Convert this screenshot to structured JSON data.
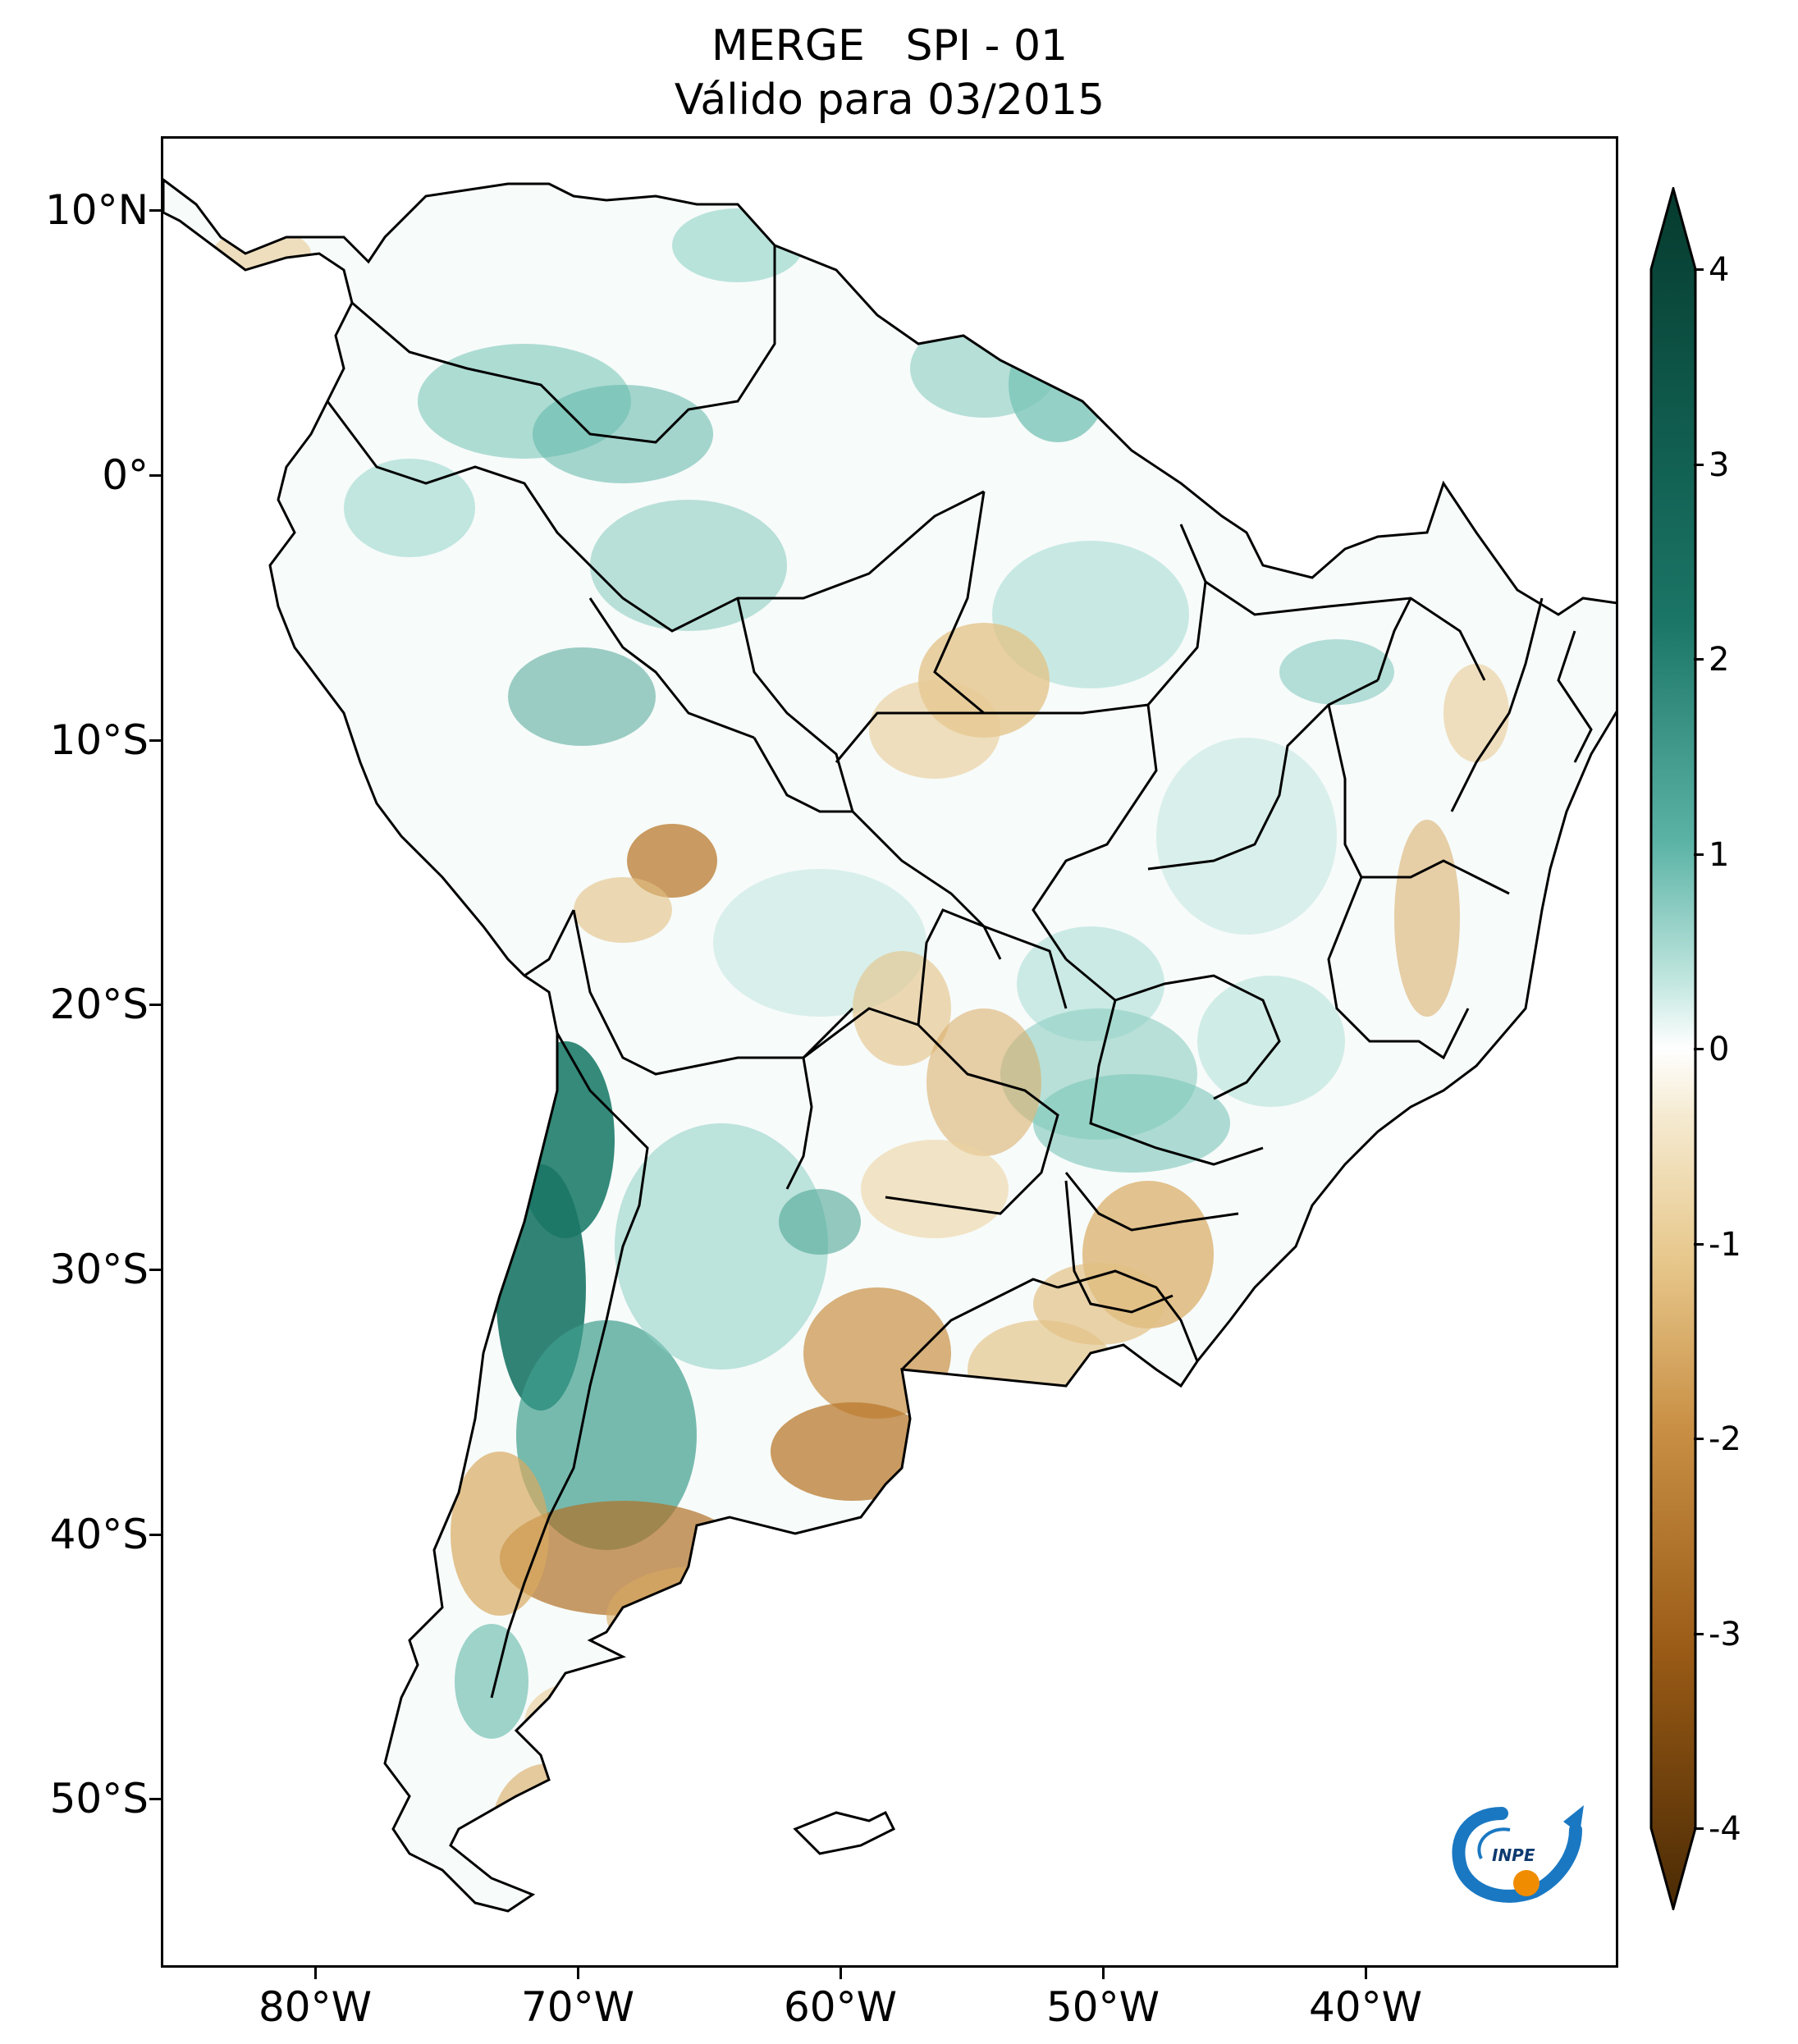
{
  "title": {
    "line1": "MERGE   SPI - 01",
    "line2": "Válido para 03/2015"
  },
  "axes": {
    "lat_labels": [
      "10°N",
      "0°",
      "10°S",
      "20°S",
      "30°S",
      "40°S",
      "50°S"
    ],
    "lon_labels": [
      "80°W",
      "70°W",
      "60°W",
      "50°W",
      "40°W"
    ]
  },
  "colorbar": {
    "labels": [
      "4",
      "3",
      "2",
      "1",
      "0",
      "-1",
      "-2",
      "-3",
      "-4"
    ],
    "colors": {
      "4": "#063a2e",
      "3": "#1b7566",
      "2": "#5bb3a6",
      "1": "#c0e6df",
      "0": "#ffffff",
      "-1": "#f2e2bd",
      "-2": "#d8aa60",
      "-3": "#a8681f",
      "-4": "#5a3406"
    }
  },
  "logo": {
    "text": "INPE"
  }
}
